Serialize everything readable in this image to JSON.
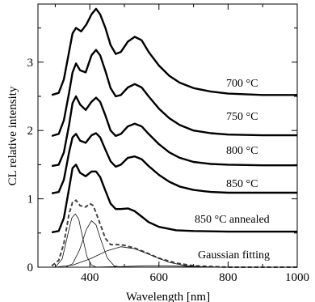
{
  "chart_data": {
    "type": "line",
    "title": "",
    "xlabel": "Wavelength [nm]",
    "ylabel": "CL relative intensity",
    "xlim": [
      250,
      1000
    ],
    "ylim": [
      0,
      3.85
    ],
    "xticks": [
      400,
      600,
      800,
      1000
    ],
    "xtick_labels": [
      "400",
      "600",
      "800",
      "1000"
    ],
    "yticks": [
      0,
      1,
      2,
      3
    ],
    "ytick_labels": [
      "0",
      "1",
      "2",
      "3"
    ],
    "grid": false,
    "legend": "none",
    "series": [
      {
        "name": "700 °C",
        "style": "solid-thick",
        "points": [
          [
            290,
            2.52
          ],
          [
            310,
            2.55
          ],
          [
            325,
            2.75
          ],
          [
            340,
            3.15
          ],
          [
            350,
            3.42
          ],
          [
            360,
            3.5
          ],
          [
            375,
            3.45
          ],
          [
            390,
            3.55
          ],
          [
            405,
            3.7
          ],
          [
            418,
            3.78
          ],
          [
            430,
            3.7
          ],
          [
            445,
            3.5
          ],
          [
            460,
            3.25
          ],
          [
            475,
            3.12
          ],
          [
            490,
            3.15
          ],
          [
            510,
            3.3
          ],
          [
            530,
            3.37
          ],
          [
            550,
            3.32
          ],
          [
            570,
            3.15
          ],
          [
            600,
            2.95
          ],
          [
            630,
            2.8
          ],
          [
            660,
            2.7
          ],
          [
            700,
            2.62
          ],
          [
            750,
            2.57
          ],
          [
            800,
            2.54
          ],
          [
            900,
            2.52
          ],
          [
            1000,
            2.52
          ]
        ]
      },
      {
        "name": "750 °C",
        "style": "solid-thick",
        "points": [
          [
            290,
            1.92
          ],
          [
            310,
            1.95
          ],
          [
            325,
            2.15
          ],
          [
            340,
            2.55
          ],
          [
            350,
            2.85
          ],
          [
            360,
            2.98
          ],
          [
            372,
            2.88
          ],
          [
            388,
            2.85
          ],
          [
            405,
            3.1
          ],
          [
            418,
            3.18
          ],
          [
            430,
            3.1
          ],
          [
            445,
            2.87
          ],
          [
            460,
            2.62
          ],
          [
            475,
            2.5
          ],
          [
            490,
            2.52
          ],
          [
            510,
            2.63
          ],
          [
            530,
            2.68
          ],
          [
            550,
            2.63
          ],
          [
            570,
            2.5
          ],
          [
            600,
            2.32
          ],
          [
            630,
            2.18
          ],
          [
            660,
            2.08
          ],
          [
            700,
            2.0
          ],
          [
            750,
            1.96
          ],
          [
            800,
            1.94
          ],
          [
            900,
            1.93
          ],
          [
            1000,
            1.93
          ]
        ]
      },
      {
        "name": "800 °C",
        "style": "solid-thick",
        "points": [
          [
            290,
            1.48
          ],
          [
            310,
            1.5
          ],
          [
            325,
            1.68
          ],
          [
            340,
            2.08
          ],
          [
            350,
            2.4
          ],
          [
            360,
            2.5
          ],
          [
            372,
            2.38
          ],
          [
            388,
            2.3
          ],
          [
            405,
            2.42
          ],
          [
            418,
            2.48
          ],
          [
            430,
            2.42
          ],
          [
            445,
            2.22
          ],
          [
            460,
            2.0
          ],
          [
            475,
            1.92
          ],
          [
            490,
            1.95
          ],
          [
            510,
            2.06
          ],
          [
            530,
            2.1
          ],
          [
            550,
            2.06
          ],
          [
            570,
            1.95
          ],
          [
            600,
            1.8
          ],
          [
            630,
            1.68
          ],
          [
            660,
            1.6
          ],
          [
            700,
            1.54
          ],
          [
            750,
            1.51
          ],
          [
            800,
            1.5
          ],
          [
            900,
            1.49
          ],
          [
            1000,
            1.49
          ]
        ]
      },
      {
        "name": "850 °C",
        "style": "solid-thick",
        "points": [
          [
            290,
            1.08
          ],
          [
            310,
            1.1
          ],
          [
            325,
            1.28
          ],
          [
            340,
            1.68
          ],
          [
            350,
            1.9
          ],
          [
            360,
            1.95
          ],
          [
            372,
            1.85
          ],
          [
            388,
            1.82
          ],
          [
            405,
            1.93
          ],
          [
            418,
            1.96
          ],
          [
            430,
            1.9
          ],
          [
            445,
            1.72
          ],
          [
            460,
            1.55
          ],
          [
            475,
            1.47
          ],
          [
            490,
            1.5
          ],
          [
            510,
            1.6
          ],
          [
            530,
            1.62
          ],
          [
            550,
            1.58
          ],
          [
            570,
            1.48
          ],
          [
            600,
            1.35
          ],
          [
            630,
            1.25
          ],
          [
            660,
            1.18
          ],
          [
            700,
            1.13
          ],
          [
            750,
            1.1
          ],
          [
            800,
            1.09
          ],
          [
            900,
            1.09
          ],
          [
            1000,
            1.09
          ]
        ]
      },
      {
        "name": "850 °C annealed",
        "style": "solid-thick",
        "points": [
          [
            290,
            0.51
          ],
          [
            310,
            0.53
          ],
          [
            325,
            0.72
          ],
          [
            340,
            1.15
          ],
          [
            350,
            1.45
          ],
          [
            360,
            1.5
          ],
          [
            372,
            1.38
          ],
          [
            388,
            1.33
          ],
          [
            405,
            1.4
          ],
          [
            418,
            1.4
          ],
          [
            430,
            1.32
          ],
          [
            445,
            1.12
          ],
          [
            460,
            0.93
          ],
          [
            475,
            0.85
          ],
          [
            490,
            0.85
          ],
          [
            510,
            0.86
          ],
          [
            530,
            0.82
          ],
          [
            550,
            0.74
          ],
          [
            570,
            0.66
          ],
          [
            600,
            0.59
          ],
          [
            650,
            0.54
          ],
          [
            700,
            0.53
          ],
          [
            800,
            0.52
          ],
          [
            900,
            0.52
          ],
          [
            1000,
            0.52
          ]
        ]
      },
      {
        "name": "Gaussian fitting",
        "style": "dashed-thick",
        "points": [
          [
            290,
            0.02
          ],
          [
            310,
            0.1
          ],
          [
            325,
            0.35
          ],
          [
            340,
            0.78
          ],
          [
            350,
            0.95
          ],
          [
            360,
            0.98
          ],
          [
            372,
            0.9
          ],
          [
            388,
            0.88
          ],
          [
            400,
            0.93
          ],
          [
            410,
            0.9
          ],
          [
            425,
            0.7
          ],
          [
            445,
            0.42
          ],
          [
            460,
            0.33
          ],
          [
            480,
            0.33
          ],
          [
            500,
            0.32
          ],
          [
            530,
            0.28
          ],
          [
            560,
            0.22
          ],
          [
            600,
            0.13
          ],
          [
            650,
            0.06
          ],
          [
            700,
            0.02
          ],
          [
            800,
            0.0
          ],
          [
            1000,
            0.0
          ]
        ]
      },
      {
        "name": "",
        "style": "solid-thin",
        "points": [
          [
            300,
            0.0
          ],
          [
            320,
            0.12
          ],
          [
            335,
            0.45
          ],
          [
            348,
            0.72
          ],
          [
            358,
            0.78
          ],
          [
            368,
            0.7
          ],
          [
            380,
            0.42
          ],
          [
            392,
            0.15
          ],
          [
            405,
            0.03
          ],
          [
            420,
            0.0
          ],
          [
            1000,
            0.0
          ]
        ]
      },
      {
        "name": "",
        "style": "solid-thin",
        "points": [
          [
            330,
            0.0
          ],
          [
            350,
            0.05
          ],
          [
            370,
            0.25
          ],
          [
            390,
            0.55
          ],
          [
            405,
            0.68
          ],
          [
            418,
            0.62
          ],
          [
            432,
            0.4
          ],
          [
            450,
            0.14
          ],
          [
            470,
            0.02
          ],
          [
            490,
            0.0
          ],
          [
            1000,
            0.0
          ]
        ]
      },
      {
        "name": "",
        "style": "solid-thin",
        "points": [
          [
            300,
            0.0
          ],
          [
            350,
            0.03
          ],
          [
            400,
            0.12
          ],
          [
            450,
            0.24
          ],
          [
            490,
            0.3
          ],
          [
            530,
            0.27
          ],
          [
            580,
            0.17
          ],
          [
            630,
            0.07
          ],
          [
            680,
            0.02
          ],
          [
            750,
            0.0
          ],
          [
            1000,
            0.0
          ]
        ]
      },
      {
        "name": "",
        "style": "solid-thin",
        "points": [
          [
            300,
            0.0
          ],
          [
            400,
            0.0
          ],
          [
            500,
            0.01
          ],
          [
            560,
            0.02
          ],
          [
            620,
            0.02
          ],
          [
            700,
            0.01
          ],
          [
            800,
            0.0
          ],
          [
            1000,
            0.0
          ]
        ]
      }
    ]
  }
}
